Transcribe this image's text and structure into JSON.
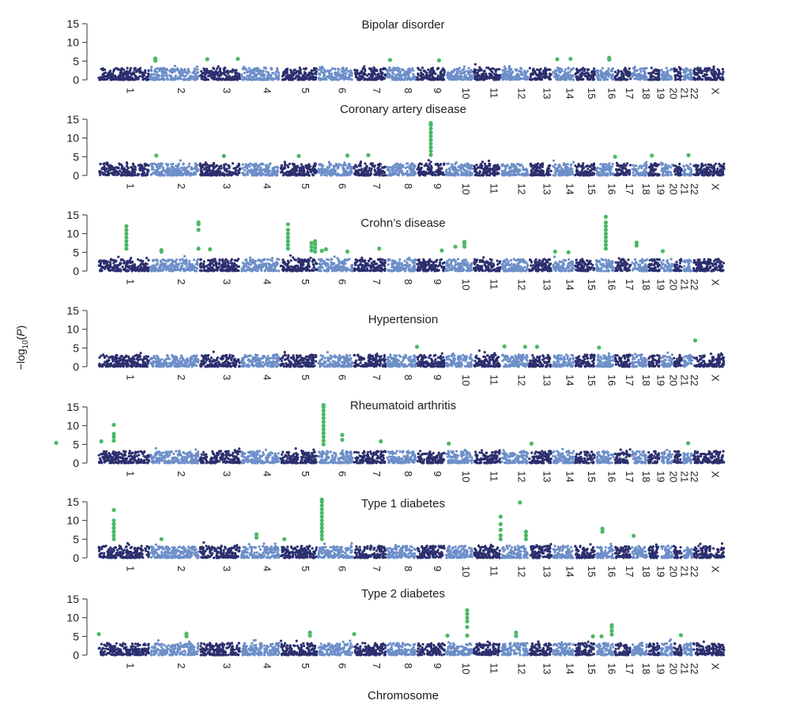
{
  "figure": {
    "ylabel_prefix": "−log",
    "ylabel_sub": "10",
    "ylabel_open": "(",
    "ylabel_var": "P",
    "ylabel_close": ")",
    "xlabel": "Chromosome"
  },
  "colors": {
    "dark": "#2b2f6e",
    "light": "#6d8fc9",
    "hit": "#4cb866",
    "axis": "#333333"
  },
  "chart_data": [
    {
      "type": "scatter",
      "title": "Bipolar disorder",
      "ylim": [
        0,
        15
      ],
      "yticks": [
        0,
        5,
        10,
        15
      ],
      "chromosomes": [
        "1",
        "2",
        "3",
        "4",
        "5",
        "6",
        "7",
        "8",
        "9",
        "10",
        "11",
        "12",
        "13",
        "14",
        "15",
        "16",
        "17",
        "18",
        "19",
        "20",
        "21",
        "22",
        "X"
      ],
      "hits": [
        {
          "chr": "2",
          "pos": 0.1,
          "values": [
            5.1,
            5.4,
            5.7
          ]
        },
        {
          "chr": "3",
          "pos": 0.18,
          "values": [
            5.5
          ]
        },
        {
          "chr": "3",
          "pos": 0.95,
          "values": [
            5.6
          ]
        },
        {
          "chr": "8",
          "pos": 0.1,
          "values": [
            5.3
          ]
        },
        {
          "chr": "9",
          "pos": 0.8,
          "values": [
            5.2
          ]
        },
        {
          "chr": "14",
          "pos": 0.2,
          "values": [
            5.5
          ]
        },
        {
          "chr": "14",
          "pos": 0.85,
          "values": [
            5.6
          ]
        },
        {
          "chr": "16",
          "pos": 0.75,
          "values": [
            5.4,
            5.9
          ]
        }
      ]
    },
    {
      "type": "scatter",
      "title": "Coronary artery disease",
      "ylim": [
        0,
        15
      ],
      "yticks": [
        0,
        5,
        10,
        15
      ],
      "chromosomes": [
        "1",
        "2",
        "3",
        "4",
        "5",
        "6",
        "7",
        "8",
        "9",
        "10",
        "11",
        "12",
        "13",
        "14",
        "15",
        "16",
        "17",
        "18",
        "19",
        "20",
        "21",
        "22",
        "X"
      ],
      "hits": [
        {
          "chr": "2",
          "pos": 0.12,
          "values": [
            5.3
          ]
        },
        {
          "chr": "3",
          "pos": 0.6,
          "values": [
            5.2
          ]
        },
        {
          "chr": "5",
          "pos": 0.5,
          "values": [
            5.2
          ]
        },
        {
          "chr": "6",
          "pos": 0.85,
          "values": [
            5.3
          ]
        },
        {
          "chr": "7",
          "pos": 0.45,
          "values": [
            5.4
          ]
        },
        {
          "chr": "9",
          "pos": 0.5,
          "values": [
            5.5,
            6.5,
            7.5,
            8.5,
            9.5,
            10.5,
            11.5,
            12.5,
            13.5,
            14.0
          ]
        },
        {
          "chr": "17",
          "pos": 0.0,
          "values": [
            5.0
          ]
        },
        {
          "chr": "19",
          "pos": 0.3,
          "values": [
            5.3
          ]
        },
        {
          "chr": "22",
          "pos": 0.6,
          "values": [
            5.4
          ]
        }
      ]
    },
    {
      "type": "scatter",
      "title": "Crohn’s disease",
      "ylim": [
        0,
        15
      ],
      "yticks": [
        0,
        5,
        10,
        15
      ],
      "chromosomes": [
        "1",
        "2",
        "3",
        "4",
        "5",
        "6",
        "7",
        "8",
        "9",
        "10",
        "11",
        "12",
        "13",
        "14",
        "15",
        "16",
        "17",
        "18",
        "19",
        "20",
        "21",
        "22",
        "X"
      ],
      "hits": [
        {
          "chr": "1",
          "pos": 0.55,
          "values": [
            6.0,
            7.0,
            8.0,
            9.0,
            10.0,
            11.0,
            12.0
          ]
        },
        {
          "chr": "1",
          "pos": 1.25,
          "values": [
            5.2,
            5.6
          ]
        },
        {
          "chr": "2",
          "pos": 1.0,
          "values": [
            6.0,
            11.0,
            12.5,
            13.0
          ]
        },
        {
          "chr": "3",
          "pos": 0.25,
          "values": [
            5.8
          ]
        },
        {
          "chr": "5",
          "pos": 0.2,
          "values": [
            6.0,
            7.0,
            8.0,
            9.0,
            10.0,
            11.0,
            12.5
          ]
        },
        {
          "chr": "5",
          "pos": 0.85,
          "values": [
            5.5,
            6.5,
            7.5
          ]
        },
        {
          "chr": "5",
          "pos": 0.95,
          "values": [
            5.2,
            6.2,
            7.2,
            8.0
          ]
        },
        {
          "chr": "6",
          "pos": 0.1,
          "values": [
            5.4
          ]
        },
        {
          "chr": "6",
          "pos": 0.22,
          "values": [
            5.8
          ]
        },
        {
          "chr": "6",
          "pos": 0.85,
          "values": [
            5.2
          ]
        },
        {
          "chr": "7",
          "pos": 0.8,
          "values": [
            6.0
          ]
        },
        {
          "chr": "9",
          "pos": 0.9,
          "values": [
            5.5
          ]
        },
        {
          "chr": "10",
          "pos": 0.35,
          "values": [
            6.5
          ]
        },
        {
          "chr": "10",
          "pos": 0.7,
          "values": [
            6.5,
            7.3,
            7.8
          ]
        },
        {
          "chr": "14",
          "pos": 0.1,
          "values": [
            5.2
          ]
        },
        {
          "chr": "14",
          "pos": 0.75,
          "values": [
            5.0
          ]
        },
        {
          "chr": "16",
          "pos": 0.55,
          "values": [
            6.0,
            7.0,
            8.0,
            9.0,
            10.0,
            11.0,
            12.0,
            13.0,
            14.5
          ]
        },
        {
          "chr": "18",
          "pos": 0.3,
          "values": [
            6.8,
            7.6
          ]
        },
        {
          "chr": "20",
          "pos": 0.15,
          "values": [
            5.3
          ]
        }
      ]
    },
    {
      "type": "scatter",
      "title": "Hypertension",
      "ylim": [
        0,
        15
      ],
      "yticks": [
        0,
        5,
        10,
        15
      ],
      "chromosomes": [
        "1",
        "2",
        "3",
        "4",
        "5",
        "6",
        "7",
        "8",
        "9",
        "10",
        "11",
        "12",
        "13",
        "14",
        "15",
        "16",
        "17",
        "18",
        "19",
        "20",
        "21",
        "22",
        "X"
      ],
      "hits": [
        {
          "chr": "8",
          "pos": 1.05,
          "values": [
            5.3
          ]
        },
        {
          "chr": "12",
          "pos": 0.1,
          "values": [
            5.4
          ]
        },
        {
          "chr": "12",
          "pos": 0.9,
          "values": [
            5.3
          ]
        },
        {
          "chr": "13",
          "pos": 0.35,
          "values": [
            5.3
          ]
        },
        {
          "chr": "16",
          "pos": 0.15,
          "values": [
            5.1
          ]
        },
        {
          "chr": "X",
          "pos": 0.05,
          "values": [
            7.0
          ]
        }
      ]
    },
    {
      "type": "scatter",
      "title": "Rheumatoid arthritis",
      "ylim": [
        0,
        15
      ],
      "yticks": [
        0,
        5,
        10,
        15
      ],
      "chromosomes": [
        "1",
        "2",
        "3",
        "4",
        "5",
        "6",
        "7",
        "8",
        "9",
        "10",
        "11",
        "12",
        "13",
        "14",
        "15",
        "16",
        "17",
        "18",
        "19",
        "20",
        "21",
        "22",
        "X"
      ],
      "hits": [
        {
          "chr": "1",
          "pos": -0.85,
          "values": [
            5.4
          ]
        },
        {
          "chr": "1",
          "pos": 0.05,
          "values": [
            5.8
          ]
        },
        {
          "chr": "1",
          "pos": 0.3,
          "values": [
            6.0,
            7.0,
            7.8,
            10.2
          ]
        },
        {
          "chr": "6",
          "pos": 0.15,
          "values": [
            5.0,
            6.0,
            7.0,
            8.0,
            9.0,
            10.0,
            11.0,
            12.0,
            13.0,
            14.0,
            15.0,
            15.5
          ]
        },
        {
          "chr": "6",
          "pos": 0.7,
          "values": [
            6.2,
            7.5
          ]
        },
        {
          "chr": "7",
          "pos": 0.85,
          "values": [
            5.8
          ]
        },
        {
          "chr": "10",
          "pos": 0.1,
          "values": [
            5.2
          ]
        },
        {
          "chr": "13",
          "pos": 0.1,
          "values": [
            5.2
          ]
        },
        {
          "chr": "22",
          "pos": 0.55,
          "values": [
            5.3
          ]
        }
      ]
    },
    {
      "type": "scatter",
      "title": "Type 1 diabetes",
      "ylim": [
        0,
        15
      ],
      "yticks": [
        0,
        5,
        10,
        15
      ],
      "chromosomes": [
        "1",
        "2",
        "3",
        "4",
        "5",
        "6",
        "7",
        "8",
        "9",
        "10",
        "11",
        "12",
        "13",
        "14",
        "15",
        "16",
        "17",
        "18",
        "19",
        "20",
        "21",
        "22",
        "X"
      ],
      "hits": [
        {
          "chr": "1",
          "pos": 0.3,
          "values": [
            5.0,
            6.0,
            7.0,
            8.0,
            9.0,
            10.0,
            12.8
          ]
        },
        {
          "chr": "1",
          "pos": 1.25,
          "values": [
            5.0
          ]
        },
        {
          "chr": "4",
          "pos": 0.4,
          "values": [
            5.4,
            6.3
          ]
        },
        {
          "chr": "5",
          "pos": 0.1,
          "values": [
            5.0
          ]
        },
        {
          "chr": "6",
          "pos": 0.1,
          "values": [
            5.0,
            6.0,
            7.0,
            8.0,
            9.0,
            10.0,
            11.0,
            12.0,
            13.0,
            14.0,
            15.0,
            15.6
          ]
        },
        {
          "chr": "12",
          "pos": -0.05,
          "values": [
            5.0,
            6.0,
            7.5,
            9.0,
            11.0
          ]
        },
        {
          "chr": "12",
          "pos": 0.7,
          "values": [
            14.8
          ]
        },
        {
          "chr": "13",
          "pos": -0.15,
          "values": [
            5.0,
            6.0,
            7.0
          ]
        },
        {
          "chr": "16",
          "pos": 0.35,
          "values": [
            7.0,
            7.8
          ]
        },
        {
          "chr": "18",
          "pos": 0.1,
          "values": [
            5.9
          ]
        }
      ]
    },
    {
      "type": "scatter",
      "title": "Type 2 diabetes",
      "ylim": [
        0,
        15
      ],
      "yticks": [
        0,
        5,
        10,
        15
      ],
      "chromosomes": [
        "1",
        "2",
        "3",
        "4",
        "5",
        "6",
        "7",
        "8",
        "9",
        "10",
        "11",
        "12",
        "13",
        "14",
        "15",
        "16",
        "17",
        "18",
        "19",
        "20",
        "21",
        "22",
        "X"
      ],
      "hits": [
        {
          "chr": "1",
          "pos": 0.0,
          "values": [
            5.6
          ]
        },
        {
          "chr": "2",
          "pos": 0.75,
          "values": [
            5.0,
            5.7
          ]
        },
        {
          "chr": "6",
          "pos": -0.25,
          "values": [
            5.2,
            6.0
          ]
        },
        {
          "chr": "7",
          "pos": 0.0,
          "values": [
            5.6
          ]
        },
        {
          "chr": "10",
          "pos": 0.05,
          "values": [
            5.2
          ]
        },
        {
          "chr": "10",
          "pos": 0.8,
          "values": [
            5.2,
            7.5,
            9.0,
            10.0,
            11.0,
            12.0
          ]
        },
        {
          "chr": "12",
          "pos": 0.55,
          "values": [
            5.1,
            6.0
          ]
        },
        {
          "chr": "15",
          "pos": 0.9,
          "values": [
            5.0
          ]
        },
        {
          "chr": "16",
          "pos": 0.3,
          "values": [
            5.0
          ]
        },
        {
          "chr": "16",
          "pos": 0.9,
          "values": [
            5.5,
            6.5,
            7.5,
            8.0
          ]
        },
        {
          "chr": "21",
          "pos": 0.9,
          "values": [
            5.3
          ]
        }
      ]
    }
  ]
}
